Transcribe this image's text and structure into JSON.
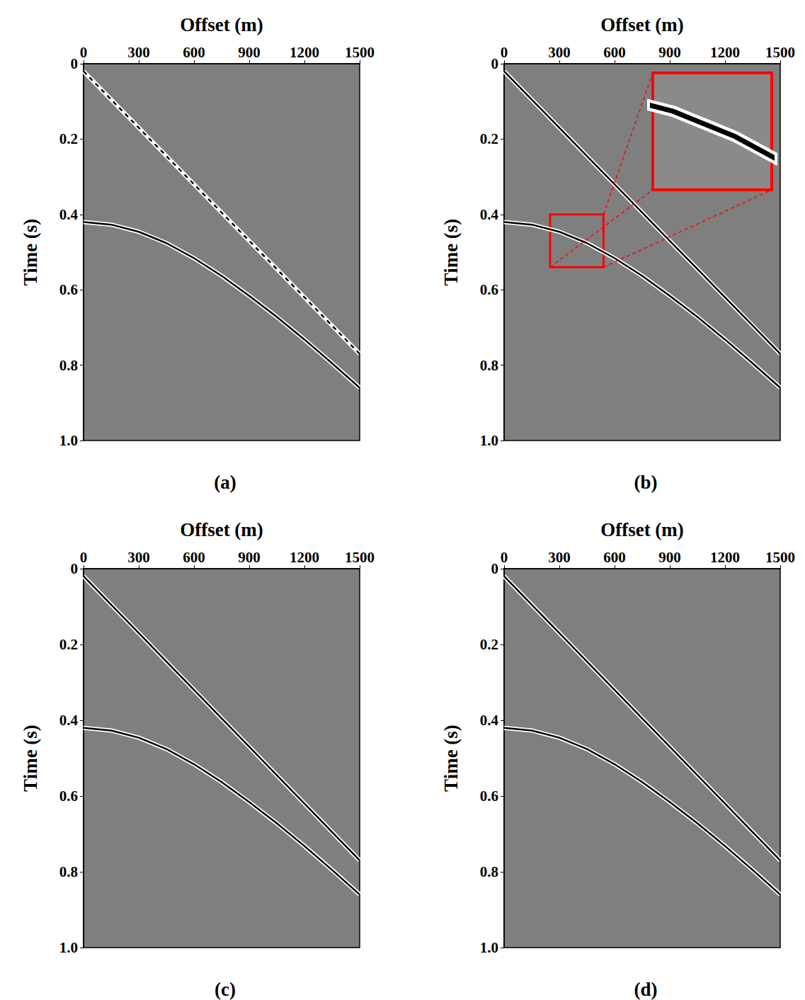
{
  "chart_data": [
    {
      "type": "line",
      "title": "(a)",
      "x_label": "Offset (m)",
      "y_label": "Time (s)",
      "xlim": [
        0,
        1500
      ],
      "xticks": [
        0,
        300,
        600,
        900,
        1200,
        1500
      ],
      "ylim": [
        0,
        1
      ],
      "yticks": [
        0,
        0.2,
        0.4,
        0.6,
        0.8,
        {
          "value": 1,
          "label": "1.0"
        }
      ],
      "grid": false,
      "x": [
        0,
        150,
        300,
        450,
        600,
        750,
        900,
        1050,
        1200,
        1350,
        1500
      ],
      "series": [
        {
          "color": "#000000",
          "line_style": "dashed",
          "values": [
            0.02,
            0.095,
            0.17,
            0.245,
            0.32,
            0.395,
            0.47,
            0.545,
            0.62,
            0.695,
            0.77
          ]
        },
        {
          "color": "#000000",
          "line_style": "solid",
          "values": [
            0.42,
            0.427,
            0.446,
            0.476,
            0.516,
            0.563,
            0.616,
            0.672,
            0.732,
            0.795,
            0.86
          ]
        }
      ]
    },
    {
      "type": "line",
      "title": "(b)",
      "x_label": "Offset (m)",
      "y_label": "Time (s)",
      "xlim": [
        0,
        1500
      ],
      "xticks": [
        0,
        300,
        600,
        900,
        1200,
        1500
      ],
      "ylim": [
        0,
        1
      ],
      "yticks": [
        0,
        0.2,
        0.4,
        0.6,
        0.8,
        {
          "value": 1,
          "label": "1.0"
        }
      ],
      "grid": false,
      "x": [
        0,
        150,
        300,
        450,
        600,
        750,
        900,
        1050,
        1200,
        1350,
        1500
      ],
      "series": [
        {
          "color": "#000000",
          "line_style": "solid",
          "values": [
            0.02,
            0.095,
            0.17,
            0.245,
            0.32,
            0.395,
            0.47,
            0.545,
            0.62,
            0.695,
            0.77
          ]
        },
        {
          "color": "#000000",
          "line_style": "solid",
          "values": [
            0.42,
            0.427,
            0.446,
            0.476,
            0.516,
            0.563,
            0.616,
            0.672,
            0.732,
            0.795,
            0.86
          ]
        }
      ],
      "zoom_box": {
        "xlim": [
          250,
          540
        ],
        "ylim": [
          0.4,
          0.54
        ],
        "color": "#ff0000"
      }
    },
    {
      "type": "line",
      "title": "(c)",
      "x_label": "Offset (m)",
      "y_label": "Time (s)",
      "xlim": [
        0,
        1500
      ],
      "xticks": [
        0,
        300,
        600,
        900,
        1200,
        1500
      ],
      "ylim": [
        0,
        1
      ],
      "yticks": [
        0,
        0.2,
        0.4,
        0.6,
        0.8,
        {
          "value": 1,
          "label": "1.0"
        }
      ],
      "grid": false,
      "x": [
        0,
        150,
        300,
        450,
        600,
        750,
        900,
        1050,
        1200,
        1350,
        1500
      ],
      "series": [
        {
          "color": "#000000",
          "line_style": "solid",
          "values": [
            0.02,
            0.095,
            0.17,
            0.245,
            0.32,
            0.395,
            0.47,
            0.545,
            0.62,
            0.695,
            0.77
          ]
        },
        {
          "color": "#000000",
          "line_style": "solid",
          "values": [
            0.42,
            0.427,
            0.446,
            0.476,
            0.516,
            0.563,
            0.616,
            0.672,
            0.732,
            0.795,
            0.86
          ]
        }
      ]
    },
    {
      "type": "line",
      "title": "(d)",
      "x_label": "Offset (m)",
      "y_label": "Time (s)",
      "xlim": [
        0,
        1500
      ],
      "xticks": [
        0,
        300,
        600,
        900,
        1200,
        1500
      ],
      "ylim": [
        0,
        1
      ],
      "yticks": [
        0,
        0.2,
        0.4,
        0.6,
        0.8,
        {
          "value": 1,
          "label": "1.0"
        }
      ],
      "grid": false,
      "x": [
        0,
        150,
        300,
        450,
        600,
        750,
        900,
        1050,
        1200,
        1350,
        1500
      ],
      "series": [
        {
          "color": "#000000",
          "line_style": "solid",
          "values": [
            0.02,
            0.095,
            0.17,
            0.245,
            0.32,
            0.395,
            0.47,
            0.545,
            0.62,
            0.695,
            0.77
          ]
        },
        {
          "color": "#000000",
          "line_style": "solid",
          "values": [
            0.42,
            0.427,
            0.446,
            0.476,
            0.516,
            0.563,
            0.616,
            0.672,
            0.732,
            0.795,
            0.86
          ]
        }
      ]
    }
  ]
}
